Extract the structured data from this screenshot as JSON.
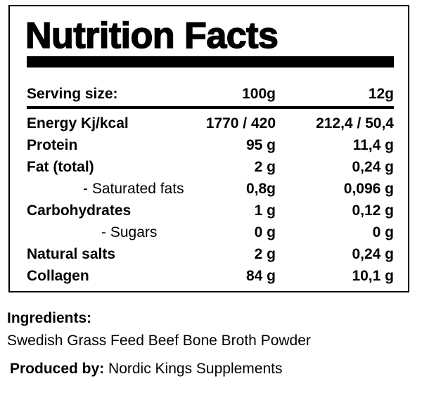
{
  "title": "Nutrition Facts",
  "serving": {
    "label": "Serving size:",
    "col1": "100g",
    "col2": "12g"
  },
  "rows": [
    {
      "label": "Energy Kj/kcal",
      "col1": "1770 / 420",
      "col2": "212,4 / 50,4"
    },
    {
      "label": "Protein",
      "col1": "95 g",
      "col2": "11,4 g"
    },
    {
      "label": "Fat (total)",
      "col1": "2 g",
      "col2": "0,24 g"
    },
    {
      "label": "- Saturated fats",
      "col1": "0,8g",
      "col2": "0,096 g"
    },
    {
      "label": "Carbohydrates",
      "col1": "1 g",
      "col2": "0,12 g"
    },
    {
      "label": "- Sugars",
      "col1": "0 g",
      "col2": "0 g"
    },
    {
      "label": "Natural salts",
      "col1": "2 g",
      "col2": "0,24 g"
    },
    {
      "label": "Collagen",
      "col1": "84 g",
      "col2": "10,1 g"
    }
  ],
  "ingredients": {
    "label": "Ingredients:",
    "text": "Swedish Grass Feed Beef Bone Broth Powder"
  },
  "producer": {
    "label": "Produced by:",
    "name": "Nordic Kings Supplements"
  }
}
